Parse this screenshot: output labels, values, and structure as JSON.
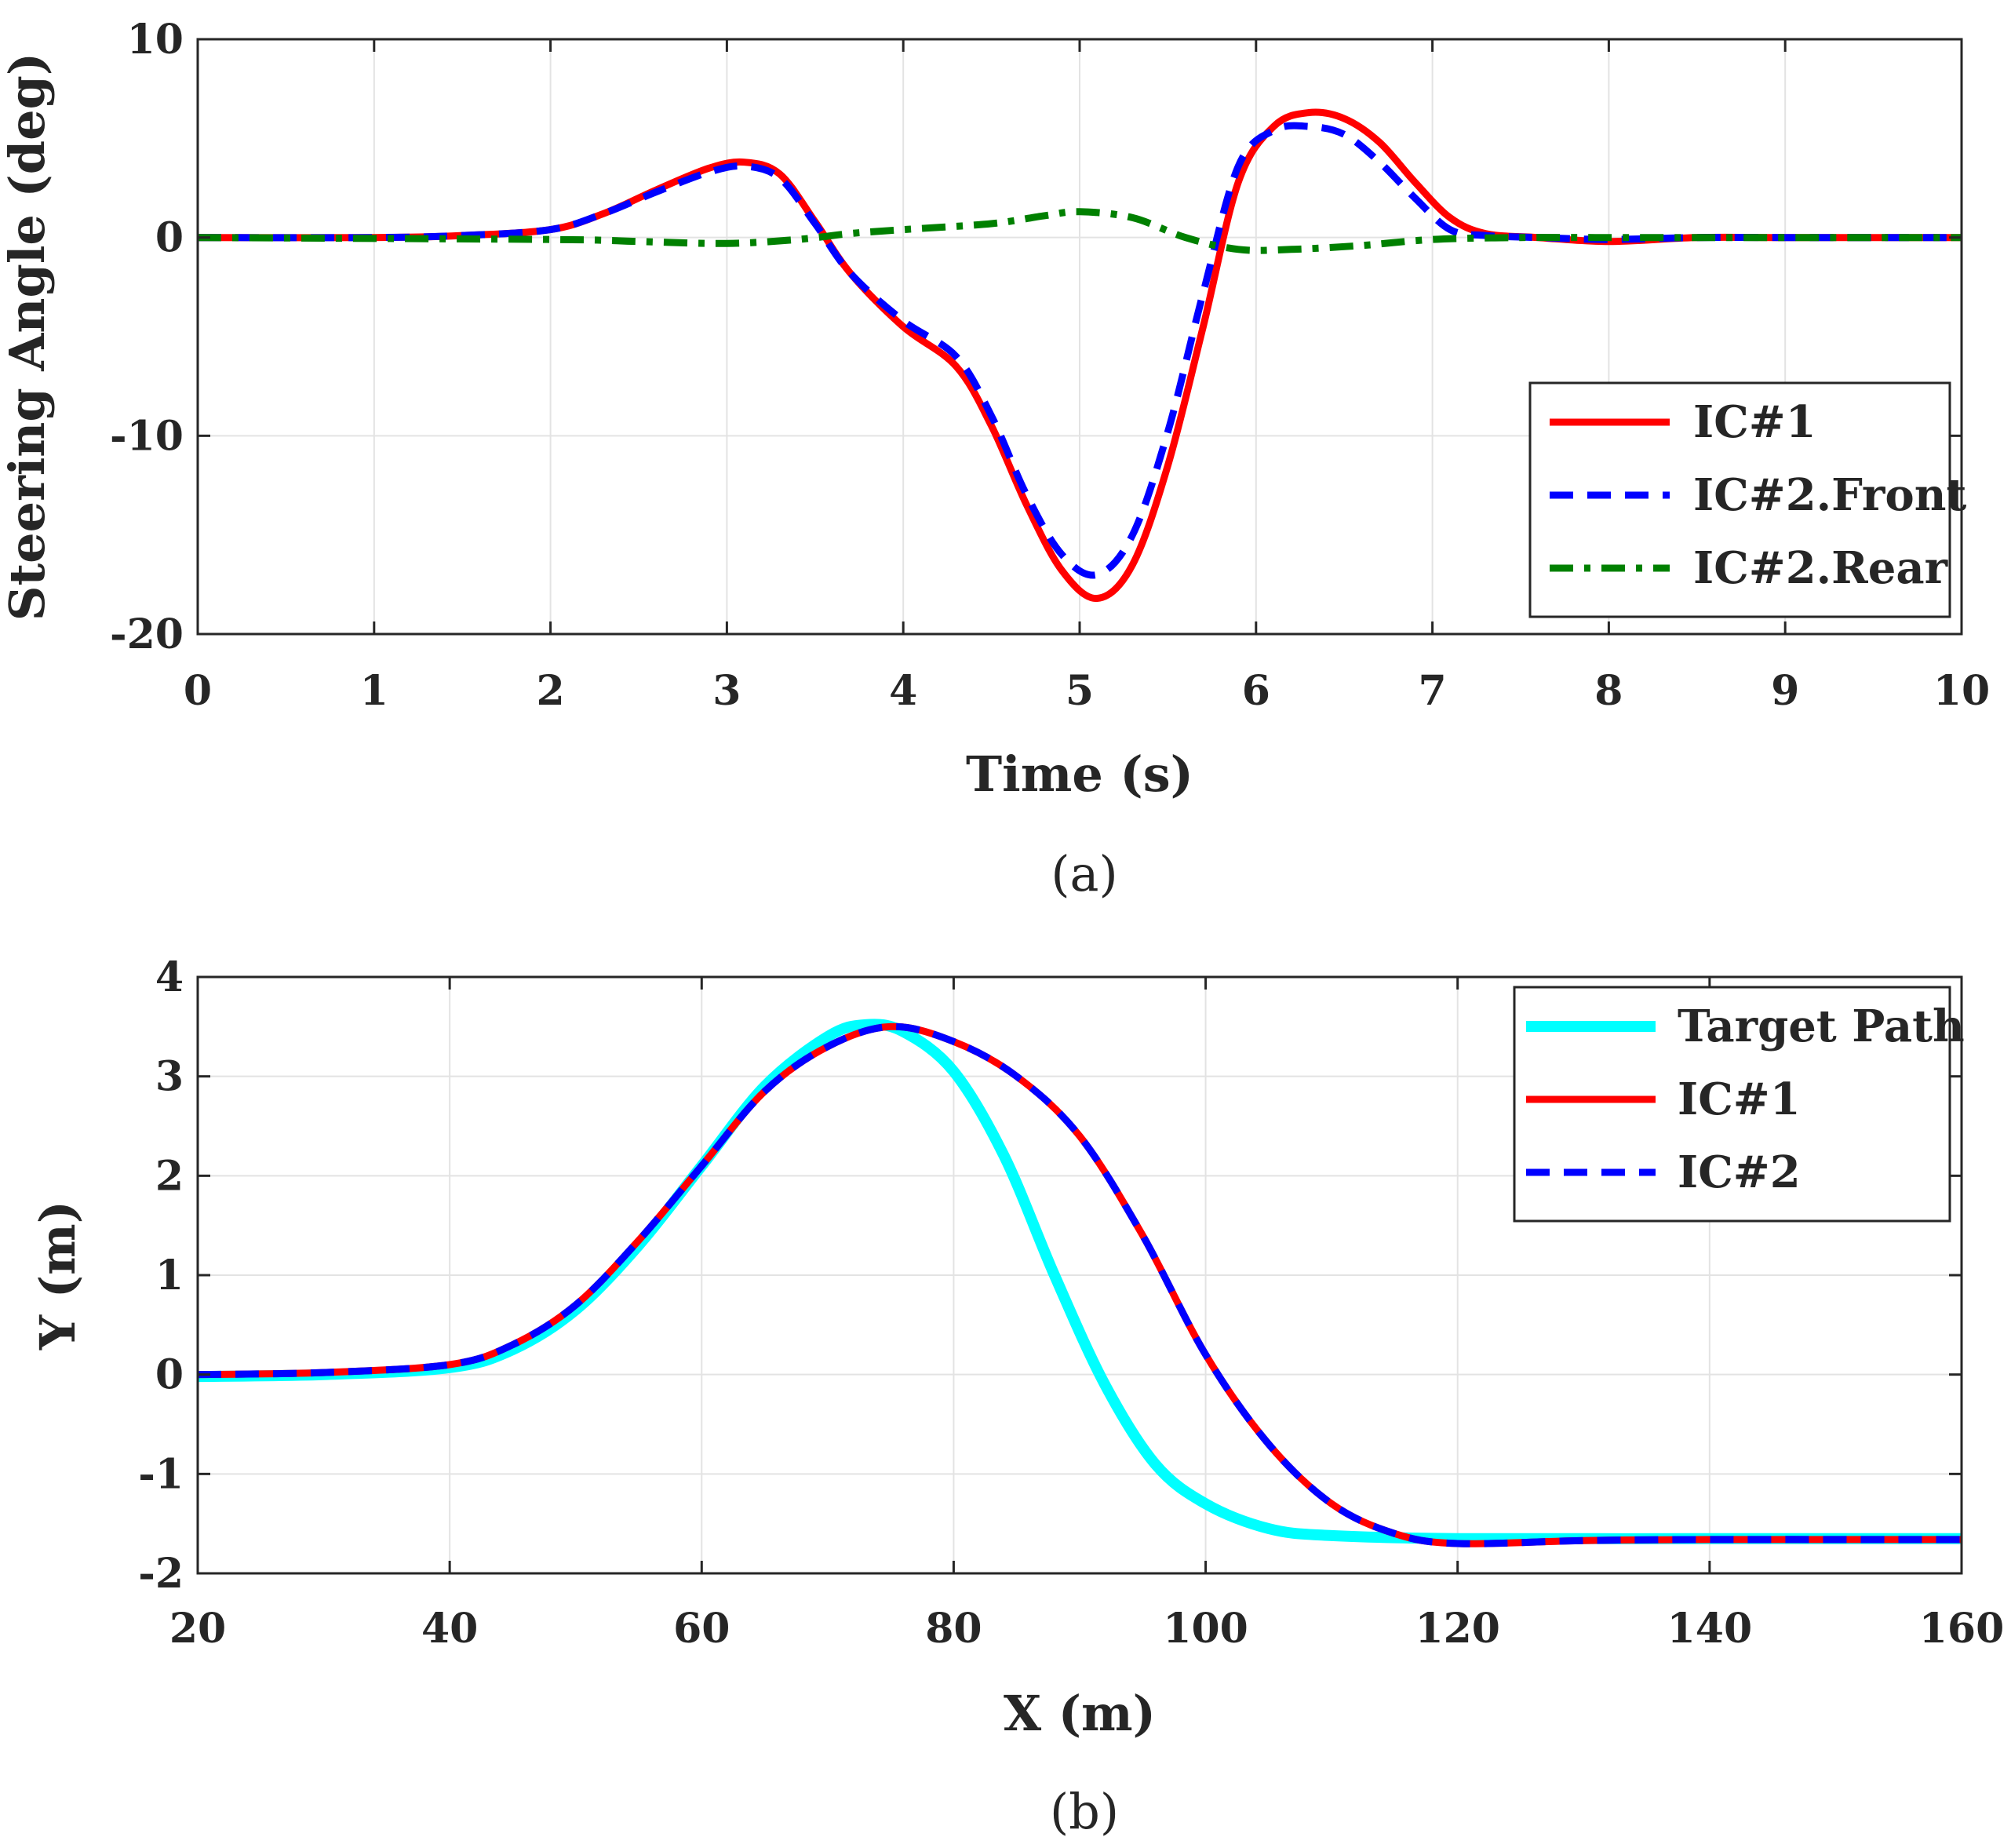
{
  "chart_data": [
    {
      "type": "line",
      "caption": "(a)",
      "title": "",
      "xlabel": "Time (s)",
      "ylabel": "Steering Angle (deg)",
      "xlim": [
        0,
        10
      ],
      "ylim": [
        -20,
        10
      ],
      "xticks": [
        0,
        1,
        2,
        3,
        4,
        5,
        6,
        7,
        8,
        9,
        10
      ],
      "yticks": [
        10,
        0,
        -10,
        -20
      ],
      "xtick_labels": [
        "0",
        "1",
        "2",
        "3",
        "4",
        "5",
        "6",
        "7",
        "8",
        "9",
        "10"
      ],
      "ytick_labels": [
        "10",
        "0",
        "-10",
        "-20"
      ],
      "grid": true,
      "legend_position": "bottom-right",
      "series": [
        {
          "name": "IC#1",
          "color": "#ff0000",
          "style": "solid",
          "x": [
            0,
            1,
            1.5,
            2,
            2.3,
            2.6,
            2.9,
            3.1,
            3.3,
            3.5,
            3.7,
            4.0,
            4.3,
            4.5,
            4.7,
            4.9,
            5.1,
            5.3,
            5.5,
            5.7,
            5.9,
            6.1,
            6.3,
            6.5,
            6.7,
            6.9,
            7.1,
            7.3,
            7.6,
            8.0,
            8.5,
            9.0,
            10.0
          ],
          "y": [
            0,
            0,
            0.1,
            0.4,
            1.2,
            2.4,
            3.5,
            3.8,
            3.2,
            0.8,
            -1.8,
            -4.5,
            -6.5,
            -9.5,
            -13.5,
            -16.8,
            -18.2,
            -16.5,
            -11.5,
            -4.5,
            2.8,
            5.6,
            6.3,
            6.0,
            4.8,
            2.8,
            1.0,
            0.2,
            0,
            -0.2,
            0,
            0,
            0
          ]
        },
        {
          "name": "IC#2.Front",
          "color": "#0000ff",
          "style": "dashed",
          "x": [
            0,
            1,
            1.5,
            2,
            2.3,
            2.6,
            2.9,
            3.1,
            3.3,
            3.5,
            3.7,
            4.0,
            4.3,
            4.5,
            4.7,
            4.9,
            5.1,
            5.3,
            5.5,
            5.7,
            5.9,
            6.1,
            6.3,
            6.5,
            6.7,
            6.9,
            7.1,
            7.3,
            7.6,
            8.0,
            8.5,
            9.0,
            10.0
          ],
          "y": [
            0,
            0,
            0.1,
            0.4,
            1.2,
            2.3,
            3.3,
            3.6,
            3.0,
            0.7,
            -1.8,
            -4.2,
            -6.0,
            -9.0,
            -13.0,
            -16.0,
            -17.0,
            -15.0,
            -9.8,
            -2.8,
            3.6,
            5.4,
            5.6,
            5.2,
            3.8,
            2.0,
            0.4,
            0.1,
            0,
            -0.1,
            0,
            0,
            0
          ]
        },
        {
          "name": "IC#2.Rear",
          "color": "#008000",
          "style": "dashdot",
          "x": [
            0,
            2.0,
            2.5,
            3.0,
            3.4,
            3.7,
            4.0,
            4.5,
            4.8,
            5.0,
            5.3,
            5.6,
            5.9,
            6.2,
            6.6,
            7.0,
            7.5,
            8.0,
            10.0
          ],
          "y": [
            0,
            -0.1,
            -0.2,
            -0.3,
            -0.1,
            0.2,
            0.4,
            0.7,
            1.1,
            1.3,
            1.0,
            0.0,
            -0.6,
            -0.6,
            -0.4,
            -0.1,
            0,
            0,
            0
          ]
        }
      ]
    },
    {
      "type": "line",
      "caption": "(b)",
      "title": "",
      "xlabel": "X (m)",
      "ylabel": "Y (m)",
      "xlim": [
        20,
        160
      ],
      "ylim": [
        -2,
        4
      ],
      "xticks": [
        20,
        40,
        60,
        80,
        100,
        120,
        140,
        160
      ],
      "yticks": [
        4,
        3,
        2,
        1,
        0,
        -1,
        -2
      ],
      "xtick_labels": [
        "20",
        "40",
        "60",
        "80",
        "100",
        "120",
        "140",
        "160"
      ],
      "ytick_labels": [
        "4",
        "3",
        "2",
        "1",
        "0",
        "-1",
        "-2"
      ],
      "grid": true,
      "legend_position": "top-right",
      "series": [
        {
          "name": "Target Path",
          "color": "#00ffff",
          "style": "solid",
          "x": [
            20,
            30,
            40,
            45,
            50,
            55,
            60,
            65,
            70,
            73,
            76,
            80,
            84,
            88,
            92,
            96,
            100,
            105,
            110,
            120,
            140,
            160
          ],
          "y": [
            -0.02,
            0,
            0.07,
            0.25,
            0.65,
            1.3,
            2.1,
            2.9,
            3.4,
            3.52,
            3.45,
            3.05,
            2.2,
            1.0,
            -0.1,
            -0.9,
            -1.3,
            -1.55,
            -1.62,
            -1.65,
            -1.65,
            -1.65
          ]
        },
        {
          "name": "IC#1",
          "color": "#ff0000",
          "style": "solid",
          "x": [
            20,
            30,
            40,
            45,
            50,
            55,
            60,
            65,
            70,
            75,
            80,
            85,
            90,
            95,
            100,
            105,
            110,
            115,
            120,
            130,
            140,
            160
          ],
          "y": [
            0,
            0.02,
            0.1,
            0.3,
            0.7,
            1.35,
            2.1,
            2.85,
            3.3,
            3.5,
            3.35,
            3.0,
            2.4,
            1.4,
            0.2,
            -0.7,
            -1.3,
            -1.6,
            -1.7,
            -1.67,
            -1.66,
            -1.66
          ]
        },
        {
          "name": "IC#2",
          "color": "#0000ff",
          "style": "dashed",
          "x": [
            20,
            30,
            40,
            45,
            50,
            55,
            60,
            65,
            70,
            75,
            80,
            85,
            90,
            95,
            100,
            105,
            110,
            115,
            120,
            130,
            140,
            160
          ],
          "y": [
            0,
            0.02,
            0.1,
            0.3,
            0.7,
            1.35,
            2.1,
            2.85,
            3.3,
            3.5,
            3.35,
            3.0,
            2.4,
            1.4,
            0.2,
            -0.7,
            -1.3,
            -1.6,
            -1.7,
            -1.67,
            -1.66,
            -1.66
          ]
        }
      ]
    }
  ]
}
